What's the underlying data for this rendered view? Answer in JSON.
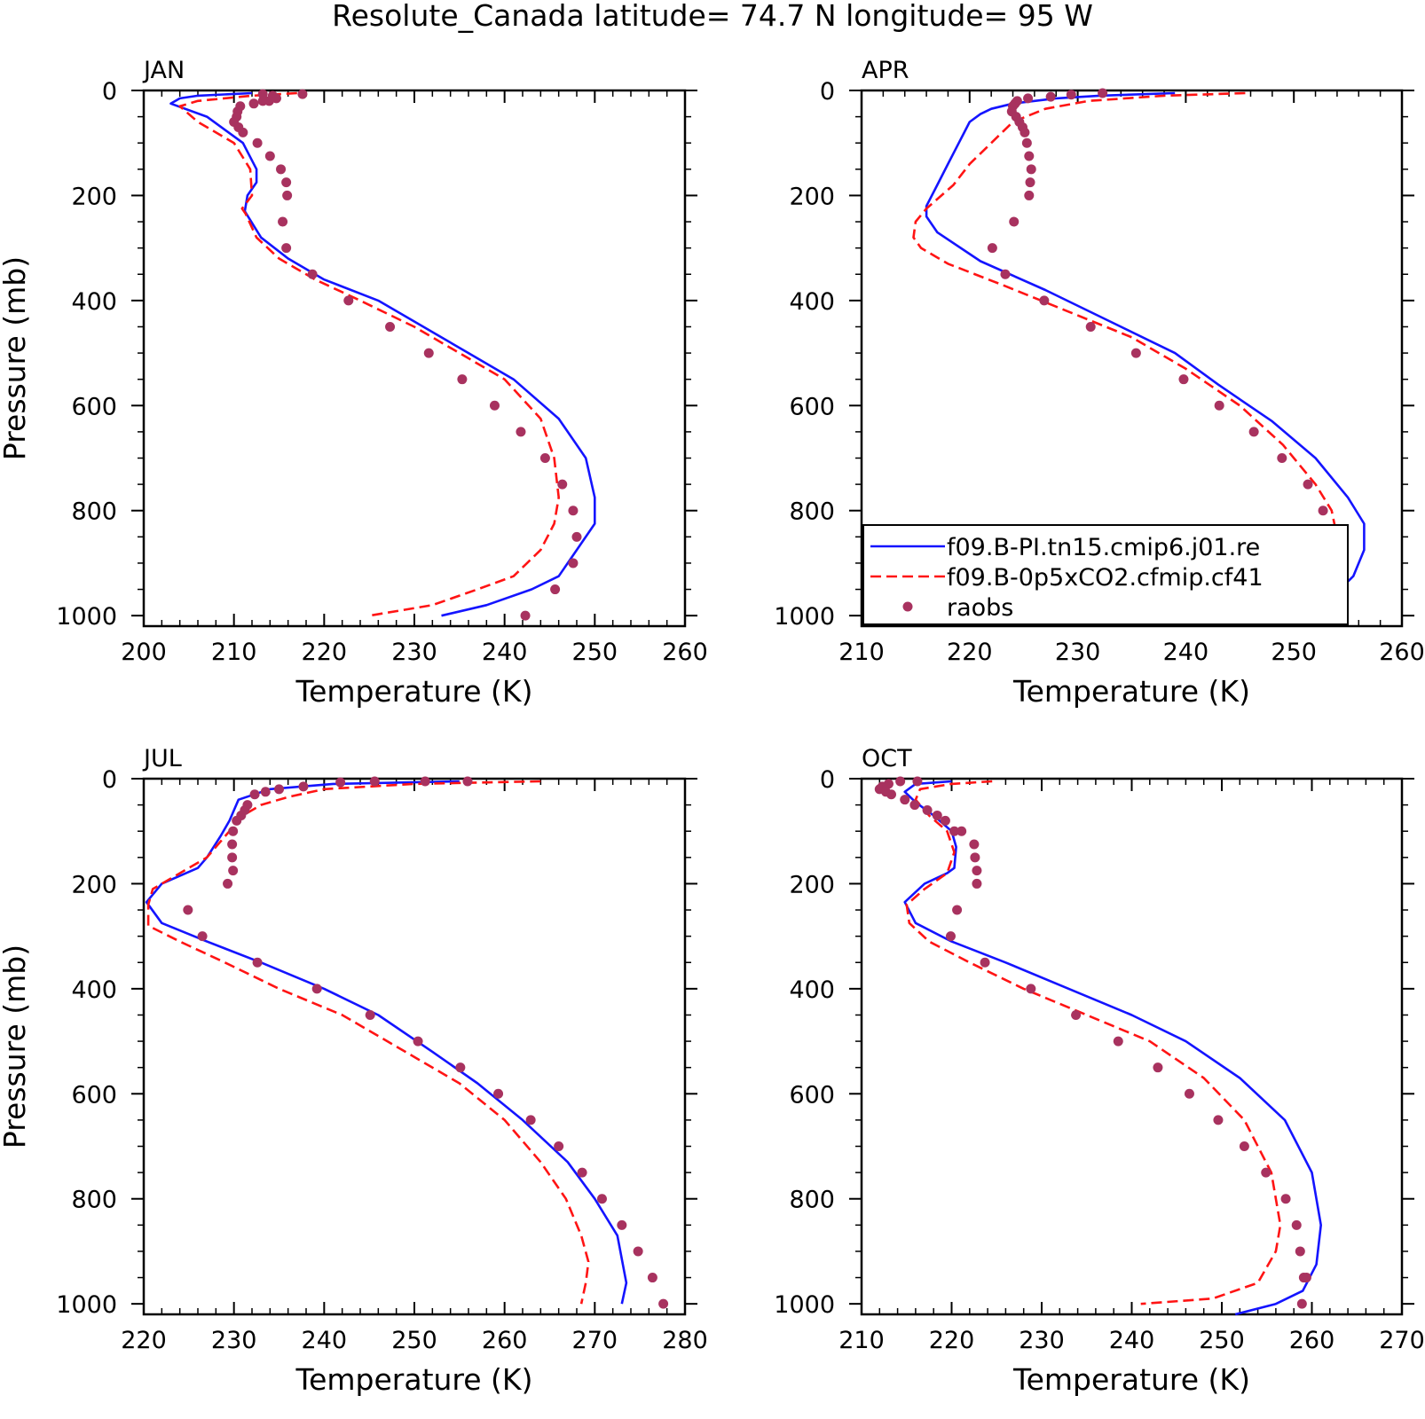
{
  "figure": {
    "title": "Resolute_Canada  latitude= 74.7 N longitude= 95 W"
  },
  "colors": {
    "model1": "#1414ff",
    "model2": "#ff1414",
    "raobs": "#a8325f",
    "axis": "#000000"
  },
  "chart_data": [
    {
      "type": "line",
      "title": "JAN",
      "xlabel": "Temperature (K)",
      "ylabel": "Pressure (mb)",
      "xlim": [
        200,
        260
      ],
      "ylim": [
        1020,
        0
      ],
      "y_reversed": true,
      "xticks": [
        "200",
        "210",
        "220",
        "230",
        "240",
        "250",
        "260"
      ],
      "yticks": [
        "0",
        "200",
        "400",
        "600",
        "800",
        "1000"
      ],
      "grid": false,
      "legend": false,
      "series": [
        {
          "name": "f09.B-PI.tn15.cmip6.j01.re",
          "style": "solid",
          "x": [
            212,
            206,
            204,
            203,
            207,
            211,
            212.5,
            212.5,
            211.5,
            211.2,
            213,
            216,
            220,
            226,
            231,
            236,
            241,
            246,
            249,
            250,
            250,
            248,
            246,
            243,
            238,
            233
          ],
          "y": [
            5,
            10,
            15,
            25,
            50,
            100,
            150,
            175,
            200,
            230,
            280,
            320,
            360,
            400,
            450,
            500,
            550,
            625,
            700,
            775,
            825,
            875,
            925,
            950,
            980,
            1000
          ]
        },
        {
          "name": "f09.B-0p5xCO2.cfmip.cf41",
          "style": "dashed",
          "x": [
            217,
            212,
            206,
            204,
            206,
            210,
            211.8,
            212,
            210.9,
            211.3,
            212.5,
            215,
            219,
            224,
            230,
            235,
            240,
            244,
            245.5,
            246,
            245.5,
            244,
            241,
            237,
            232,
            225
          ],
          "y": [
            5,
            10,
            20,
            30,
            60,
            100,
            150,
            200,
            225,
            235,
            280,
            320,
            360,
            400,
            450,
            500,
            550,
            625,
            700,
            775,
            825,
            875,
            925,
            950,
            980,
            1000
          ]
        },
        {
          "name": "raobs",
          "style": "markers",
          "x": [
            217.6,
            213.2,
            214.3,
            214.7,
            213.9,
            213.2,
            212.2,
            210.7,
            210.4,
            210.3,
            210.0,
            210.5,
            211.0,
            212.6,
            214.0,
            215.2,
            215.8,
            215.9,
            215.4,
            215.8,
            218.7,
            222.7,
            227.3,
            231.6,
            235.3,
            238.9,
            241.8,
            244.5,
            246.4,
            247.6,
            248.0,
            247.6,
            245.6,
            242.3
          ],
          "y": [
            7,
            7,
            10,
            15,
            20,
            20,
            25,
            30,
            40,
            50,
            60,
            70,
            80,
            100,
            125,
            150,
            175,
            200,
            250,
            300,
            350,
            400,
            450,
            500,
            550,
            600,
            650,
            700,
            750,
            800,
            850,
            900,
            950,
            1000
          ]
        }
      ]
    },
    {
      "type": "line",
      "title": "APR",
      "xlabel": "Temperature (K)",
      "ylabel": "",
      "xlim": [
        210,
        260
      ],
      "ylim": [
        1020,
        0
      ],
      "y_reversed": true,
      "xticks": [
        "210",
        "220",
        "230",
        "240",
        "250",
        "260"
      ],
      "yticks": [
        "0",
        "200",
        "400",
        "600",
        "800",
        "1000"
      ],
      "grid": false,
      "legend": true,
      "legend_position": "center-right",
      "legend_entries": [
        {
          "label": "f09.B-PI.tn15.cmip6.j01.re",
          "style": "solid"
        },
        {
          "label": "f09.B-0p5xCO2.cfmip.cf41",
          "style": "dashed"
        },
        {
          "label": "raobs",
          "style": "markers"
        }
      ],
      "series": [
        {
          "name": "f09.B-PI.tn15.cmip6.j01.re",
          "style": "solid",
          "x": [
            239,
            232,
            228,
            224,
            222,
            221,
            220,
            219.5,
            219,
            218,
            217,
            216,
            216,
            217,
            221,
            227,
            233,
            239,
            243,
            248,
            252,
            255,
            256.5,
            256.5,
            255.5,
            253,
            247
          ],
          "y": [
            5,
            10,
            15,
            25,
            35,
            45,
            60,
            80,
            100,
            140,
            180,
            220,
            240,
            270,
            325,
            380,
            440,
            500,
            560,
            630,
            700,
            775,
            825,
            875,
            925,
            975,
            1005
          ]
        },
        {
          "name": "f09.B-0p5xCO2.cfmip.cf41",
          "style": "dashed",
          "x": [
            245.5,
            238,
            231,
            227,
            224,
            222,
            220,
            218.5,
            216,
            215,
            214.8,
            215.5,
            218,
            223,
            229,
            235,
            240,
            245,
            249,
            252,
            253.5,
            254,
            253.5,
            251,
            246,
            240
          ],
          "y": [
            5,
            10,
            20,
            35,
            60,
            100,
            140,
            180,
            225,
            250,
            280,
            300,
            330,
            370,
            420,
            470,
            530,
            600,
            675,
            750,
            800,
            850,
            900,
            950,
            990,
            1005
          ]
        },
        {
          "name": "raobs",
          "style": "markers",
          "x": [
            232.3,
            229.4,
            227.5,
            225.4,
            224.4,
            224.2,
            224.0,
            223.9,
            224.3,
            224.6,
            224.9,
            225.1,
            225.3,
            225.5,
            225.7,
            225.6,
            225.5,
            224.1,
            222.1,
            223.3,
            226.9,
            231.2,
            235.4,
            239.8,
            243.1,
            246.3,
            248.9,
            251.3,
            252.7,
            253.4,
            253.8,
            253.8,
            253.1,
            251.1
          ],
          "y": [
            5,
            8,
            12,
            15,
            20,
            25,
            30,
            40,
            50,
            60,
            70,
            80,
            100,
            125,
            150,
            175,
            200,
            250,
            300,
            350,
            400,
            450,
            500,
            550,
            600,
            650,
            700,
            750,
            800,
            850,
            900,
            900,
            950,
            1000
          ]
        }
      ]
    },
    {
      "type": "line",
      "title": "JUL",
      "xlabel": "Temperature (K)",
      "ylabel": "Pressure (mb)",
      "xlim": [
        220,
        280
      ],
      "ylim": [
        1020,
        0
      ],
      "y_reversed": true,
      "xticks": [
        "220",
        "230",
        "240",
        "250",
        "260",
        "270",
        "280"
      ],
      "yticks": [
        "0",
        "200",
        "400",
        "600",
        "800",
        "1000"
      ],
      "grid": false,
      "legend": false,
      "series": [
        {
          "name": "f09.B-PI.tn15.cmip6.j01.re",
          "style": "solid",
          "x": [
            255,
            241,
            234,
            230.5,
            230,
            229.5,
            228.5,
            227,
            226,
            222,
            220.3,
            222,
            227,
            233,
            240,
            246,
            252,
            257,
            262,
            267,
            270,
            272.5,
            273.5,
            273
          ],
          "y": [
            5,
            10,
            20,
            40,
            60,
            80,
            110,
            150,
            170,
            200,
            235,
            275,
            310,
            350,
            400,
            450,
            520,
            580,
            650,
            730,
            800,
            870,
            960,
            1000
          ]
        },
        {
          "name": "f09.B-0p5xCO2.cfmip.cf41",
          "style": "dashed",
          "x": [
            264,
            250,
            240,
            236,
            233,
            231,
            229,
            227,
            224,
            221,
            220.5,
            220.5,
            224,
            229,
            235,
            242,
            249,
            255,
            260,
            264,
            266.8,
            268.5,
            269.3,
            269,
            268.5
          ],
          "y": [
            5,
            10,
            20,
            35,
            50,
            70,
            110,
            150,
            180,
            210,
            240,
            280,
            310,
            350,
            400,
            450,
            520,
            580,
            650,
            730,
            800,
            870,
            920,
            960,
            1000
          ]
        },
        {
          "name": "raobs",
          "style": "markers",
          "x": [
            255.9,
            251.2,
            245.6,
            241.8,
            237.7,
            235.0,
            233.5,
            232.3,
            231.5,
            231.2,
            230.8,
            230.3,
            229.9,
            229.8,
            229.8,
            229.9,
            229.3,
            224.9,
            226.5,
            232.6,
            239.2,
            245.1,
            250.4,
            255.1,
            259.3,
            262.9,
            266.0,
            268.6,
            270.8,
            273.0,
            274.8,
            276.4,
            277.6
          ],
          "y": [
            5,
            5,
            5,
            7,
            15,
            20,
            25,
            30,
            50,
            60,
            70,
            80,
            100,
            125,
            150,
            175,
            200,
            250,
            300,
            350,
            400,
            450,
            500,
            550,
            600,
            650,
            700,
            750,
            800,
            850,
            900,
            950,
            1000
          ]
        }
      ]
    },
    {
      "type": "line",
      "title": "OCT",
      "xlabel": "Temperature (K)",
      "ylabel": "",
      "xlim": [
        210,
        270
      ],
      "ylim": [
        1020,
        0
      ],
      "y_reversed": true,
      "xticks": [
        "210",
        "220",
        "230",
        "240",
        "250",
        "260",
        "270"
      ],
      "yticks": [
        "0",
        "200",
        "400",
        "600",
        "800",
        "1000"
      ],
      "grid": false,
      "legend": false,
      "series": [
        {
          "name": "f09.B-PI.tn15.cmip6.j01.re",
          "style": "solid",
          "x": [
            220,
            216,
            214.8,
            216,
            218,
            220,
            220.5,
            220.3,
            219.5,
            217,
            214.8,
            216,
            220,
            226,
            233,
            240,
            246,
            252,
            257,
            260,
            261,
            260.5,
            259,
            256,
            251.5
          ],
          "y": [
            5,
            10,
            25,
            45,
            70,
            100,
            130,
            170,
            180,
            200,
            235,
            275,
            310,
            350,
            400,
            450,
            500,
            570,
            650,
            750,
            850,
            925,
            975,
            1000,
            1020
          ]
        },
        {
          "name": "f09.B-0p5xCO2.cfmip.cf41",
          "style": "dashed",
          "x": [
            224.5,
            220,
            216.5,
            216,
            217.5,
            219.5,
            220.3,
            219.5,
            217,
            215,
            215.3,
            217.5,
            222,
            228,
            235,
            242,
            248,
            252.5,
            255.5,
            256.5,
            256,
            254,
            249,
            241
          ],
          "y": [
            5,
            10,
            20,
            40,
            70,
            100,
            140,
            180,
            210,
            240,
            275,
            310,
            350,
            400,
            450,
            500,
            570,
            650,
            750,
            850,
            900,
            960,
            990,
            1000
          ]
        },
        {
          "name": "raobs",
          "style": "markers",
          "x": [
            216.2,
            214.3,
            213.0,
            212.3,
            212.0,
            212.7,
            213.3,
            214.8,
            215.9,
            217.3,
            218.4,
            219.3,
            220.3,
            221.1,
            222.5,
            222.6,
            222.8,
            222.8,
            220.6,
            219.9,
            223.7,
            228.8,
            233.8,
            238.5,
            242.9,
            246.4,
            249.6,
            252.5,
            254.9,
            257.1,
            258.3,
            258.7,
            259.1,
            259.4,
            258.9
          ],
          "y": [
            5,
            5,
            10,
            15,
            20,
            25,
            30,
            40,
            50,
            60,
            70,
            80,
            100,
            100,
            125,
            150,
            175,
            200,
            250,
            300,
            350,
            400,
            450,
            500,
            550,
            600,
            650,
            700,
            750,
            800,
            850,
            900,
            950,
            950,
            1000
          ]
        }
      ]
    }
  ]
}
